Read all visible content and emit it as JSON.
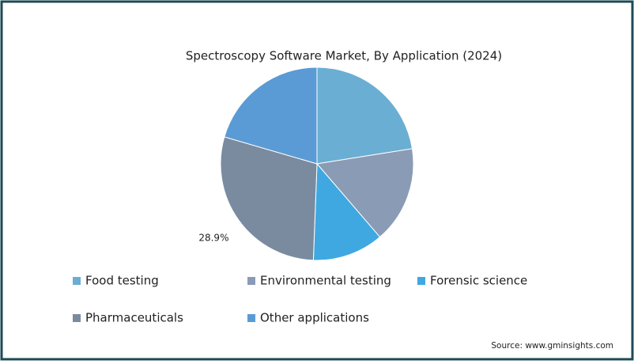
{
  "chart_data": {
    "type": "pie",
    "title": "Spectroscopy Software Market, By Application (2024)",
    "categories": [
      "Food testing",
      "Environmental testing",
      "Forensic science",
      "Pharmaceuticals",
      "Other applications"
    ],
    "values": [
      22.5,
      16.2,
      11.9,
      28.9,
      20.5
    ],
    "value_labels": [
      null,
      null,
      null,
      "28.9%",
      null
    ],
    "colors": [
      "#6aaed3",
      "#8a9bb5",
      "#3fa8e0",
      "#7a8b9f",
      "#5b9bd5"
    ],
    "source": "Source: www.gminsights.com"
  }
}
